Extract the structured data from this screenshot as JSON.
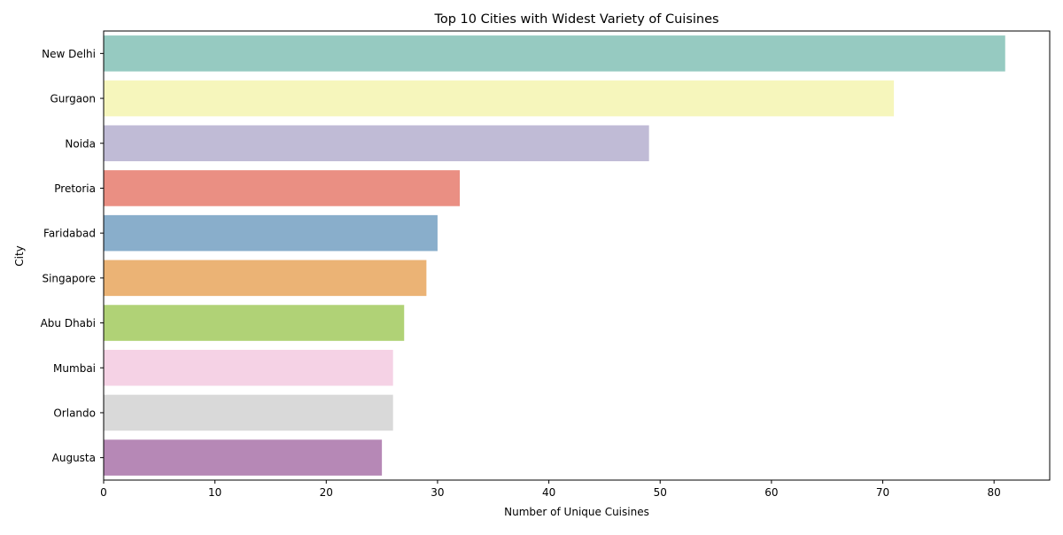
{
  "chart_data": {
    "type": "bar",
    "orientation": "horizontal",
    "title": "Top 10 Cities with Widest Variety of Cuisines",
    "xlabel": "Number of Unique Cuisines",
    "ylabel": "City",
    "categories": [
      "New Delhi",
      "Gurgaon",
      "Noida",
      "Pretoria",
      "Faridabad",
      "Singapore",
      "Abu Dhabi",
      "Mumbai",
      "Orlando",
      "Augusta"
    ],
    "values": [
      81,
      71,
      49,
      32,
      30,
      29,
      27,
      26,
      26,
      25
    ],
    "colors": [
      "#96cac1",
      "#f6f6bc",
      "#c0bbd6",
      "#ea8f83",
      "#89aecb",
      "#ebb375",
      "#b0d276",
      "#f5d2e5",
      "#d9d9d9",
      "#b688b6"
    ],
    "xlim": [
      0,
      85
    ],
    "xticks": [
      "0",
      "10",
      "20",
      "30",
      "40",
      "50",
      "60",
      "70",
      "80"
    ],
    "grid": false,
    "legend": "none"
  }
}
